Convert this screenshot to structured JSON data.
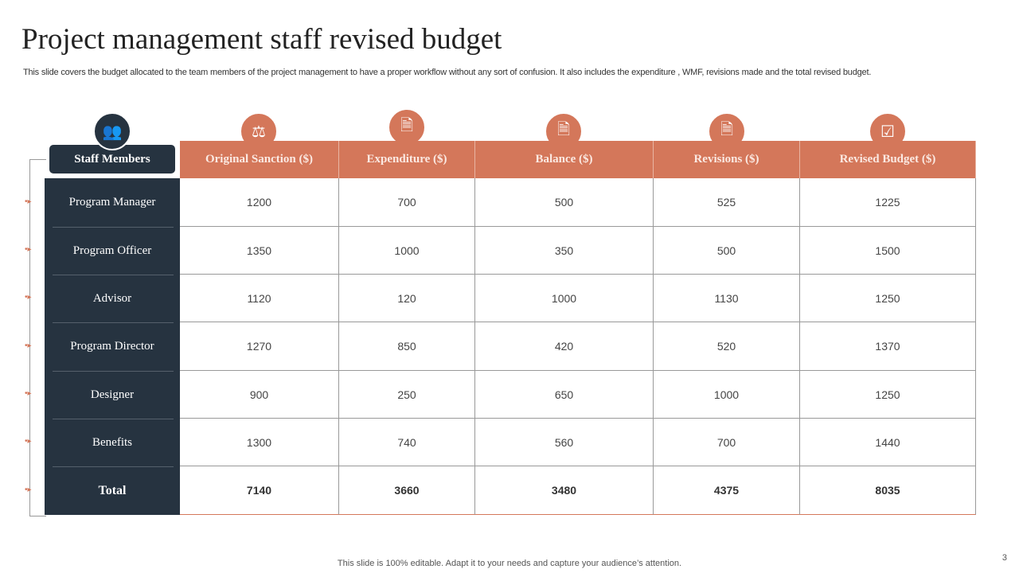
{
  "title": "Project management staff revised budget",
  "subtitle": "This slide covers the budget allocated to the team members of the project management to have a proper workflow without any sort of confusion. It also includes the expenditure , WMF,  revisions made and the total revised budget.",
  "footer": "This slide is 100% editable. Adapt it to your needs and capture your audience’s attention.",
  "page_number": "3",
  "colors": {
    "accent": "#D4775A",
    "dark": "#263340"
  },
  "table": {
    "headers": [
      "Staff Members",
      "Original Sanction ($)",
      "Expenditure ($)",
      "Balance ($)",
      "Revisions ($)",
      "Revised Budget ($)"
    ],
    "header_icons": [
      "team-cycle-icon",
      "gavel-icon",
      "document-money-icon",
      "document-money-icon",
      "document-money-icon",
      "checklist-icon"
    ],
    "rows": [
      [
        "Program Manager",
        "1200",
        "700",
        "500",
        "525",
        "1225"
      ],
      [
        "Program Officer",
        "1350",
        "1000",
        "350",
        "500",
        "1500"
      ],
      [
        "Advisor",
        "1120",
        "120",
        "1000",
        "1130",
        "1250"
      ],
      [
        "Program Director",
        "1270",
        "850",
        "420",
        "520",
        "1370"
      ],
      [
        "Designer",
        "900",
        "250",
        "650",
        "1000",
        "1250"
      ],
      [
        "Benefits",
        "1300",
        "740",
        "560",
        "700",
        "1440"
      ],
      [
        "Total",
        "7140",
        "3660",
        "3480",
        "4375",
        "8035"
      ]
    ]
  }
}
